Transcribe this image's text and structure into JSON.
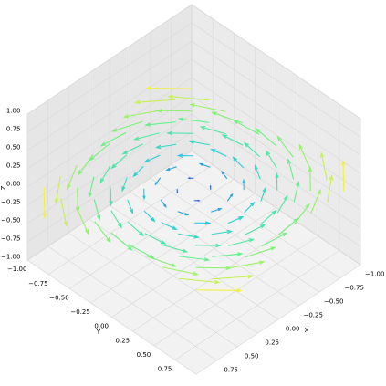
{
  "chart_data": {
    "type": "quiver3d",
    "xlabel": "X",
    "ylabel": "Y",
    "zlabel": "Z",
    "xlim": [
      -1,
      1
    ],
    "ylim": [
      -1,
      1
    ],
    "zlim": [
      -1,
      1
    ],
    "xticks": [
      {
        "value": -1,
        "label": "−1.00"
      },
      {
        "value": -0.75,
        "label": "−0.75"
      },
      {
        "value": -0.5,
        "label": "−0.50"
      },
      {
        "value": -0.25,
        "label": "−0.25"
      },
      {
        "value": 0,
        "label": "0.00"
      },
      {
        "value": 0.25,
        "label": "0.25"
      },
      {
        "value": 0.5,
        "label": "0.50"
      },
      {
        "value": 0.75,
        "label": "0.75"
      }
    ],
    "yticks": [
      {
        "value": -1,
        "label": "−1.00"
      },
      {
        "value": -0.75,
        "label": "−0.75"
      },
      {
        "value": -0.5,
        "label": "−0.50"
      },
      {
        "value": -0.25,
        "label": "−0.25"
      },
      {
        "value": 0,
        "label": "0.00"
      },
      {
        "value": 0.25,
        "label": "0.25"
      },
      {
        "value": 0.5,
        "label": "0.50"
      },
      {
        "value": 0.75,
        "label": "0.75"
      }
    ],
    "zticks": [
      {
        "value": -1,
        "label": "−1.00"
      },
      {
        "value": -0.75,
        "label": "−0.75"
      },
      {
        "value": -0.5,
        "label": "−0.50"
      },
      {
        "value": -0.25,
        "label": "−0.25"
      },
      {
        "value": 0,
        "label": "0.00"
      },
      {
        "value": 0.25,
        "label": "0.25"
      },
      {
        "value": 0.5,
        "label": "0.50"
      },
      {
        "value": 0.75,
        "label": "0.75"
      },
      {
        "value": 1,
        "label": "1.00"
      }
    ],
    "grid": true,
    "colormap": [
      "#2a2ad4",
      "#1fc8e6",
      "#5ef08a",
      "#f2f23a"
    ],
    "x": [
      -0.9,
      -0.7,
      -0.5,
      -0.3,
      -0.1,
      0.1,
      0.3,
      0.5,
      0.7,
      0.9
    ],
    "y": [
      -0.9,
      -0.7,
      -0.5,
      -0.3,
      -0.1,
      0.1,
      0.3,
      0.5,
      0.7,
      0.9
    ],
    "u": [
      [
        0.27,
        0.27,
        0.27,
        0.27,
        0.27,
        0.27,
        0.27,
        0.27,
        0.27,
        0.27
      ],
      [
        0.21,
        0.21,
        0.21,
        0.21,
        0.21,
        0.21,
        0.21,
        0.21,
        0.21,
        0.21
      ],
      [
        0.15,
        0.15,
        0.15,
        0.15,
        0.15,
        0.15,
        0.15,
        0.15,
        0.15,
        0.15
      ],
      [
        0.09,
        0.09,
        0.09,
        0.09,
        0.09,
        0.09,
        0.09,
        0.09,
        0.09,
        0.09
      ],
      [
        0.03,
        0.03,
        0.03,
        0.03,
        0.03,
        0.03,
        0.03,
        0.03,
        0.03,
        0.03
      ],
      [
        -0.03,
        -0.03,
        -0.03,
        -0.03,
        -0.03,
        -0.03,
        -0.03,
        -0.03,
        -0.03,
        -0.03
      ],
      [
        -0.09,
        -0.09,
        -0.09,
        -0.09,
        -0.09,
        -0.09,
        -0.09,
        -0.09,
        -0.09,
        -0.09
      ],
      [
        -0.15,
        -0.15,
        -0.15,
        -0.15,
        -0.15,
        -0.15,
        -0.15,
        -0.15,
        -0.15,
        -0.15
      ],
      [
        -0.21,
        -0.21,
        -0.21,
        -0.21,
        -0.21,
        -0.21,
        -0.21,
        -0.21,
        -0.21,
        -0.21
      ],
      [
        -0.27,
        -0.27,
        -0.27,
        -0.27,
        -0.27,
        -0.27,
        -0.27,
        -0.27,
        -0.27,
        -0.27
      ]
    ],
    "v": [
      [
        -0.27,
        -0.21,
        -0.15,
        -0.09,
        -0.03,
        0.03,
        0.09,
        0.15,
        0.21,
        0.27
      ],
      [
        -0.27,
        -0.21,
        -0.15,
        -0.09,
        -0.03,
        0.03,
        0.09,
        0.15,
        0.21,
        0.27
      ],
      [
        -0.27,
        -0.21,
        -0.15,
        -0.09,
        -0.03,
        0.03,
        0.09,
        0.15,
        0.21,
        0.27
      ],
      [
        -0.27,
        -0.21,
        -0.15,
        -0.09,
        -0.03,
        0.03,
        0.09,
        0.15,
        0.21,
        0.27
      ],
      [
        -0.27,
        -0.21,
        -0.15,
        -0.09,
        -0.03,
        0.03,
        0.09,
        0.15,
        0.21,
        0.27
      ],
      [
        -0.27,
        -0.21,
        -0.15,
        -0.09,
        -0.03,
        0.03,
        0.09,
        0.15,
        0.21,
        0.27
      ],
      [
        -0.27,
        -0.21,
        -0.15,
        -0.09,
        -0.03,
        0.03,
        0.09,
        0.15,
        0.21,
        0.27
      ],
      [
        -0.27,
        -0.21,
        -0.15,
        -0.09,
        -0.03,
        0.03,
        0.09,
        0.15,
        0.21,
        0.27
      ],
      [
        -0.27,
        -0.21,
        -0.15,
        -0.09,
        -0.03,
        0.03,
        0.09,
        0.15,
        0.21,
        0.27
      ],
      [
        -0.27,
        -0.21,
        -0.15,
        -0.09,
        -0.03,
        0.03,
        0.09,
        0.15,
        0.21,
        0.27
      ]
    ]
  }
}
